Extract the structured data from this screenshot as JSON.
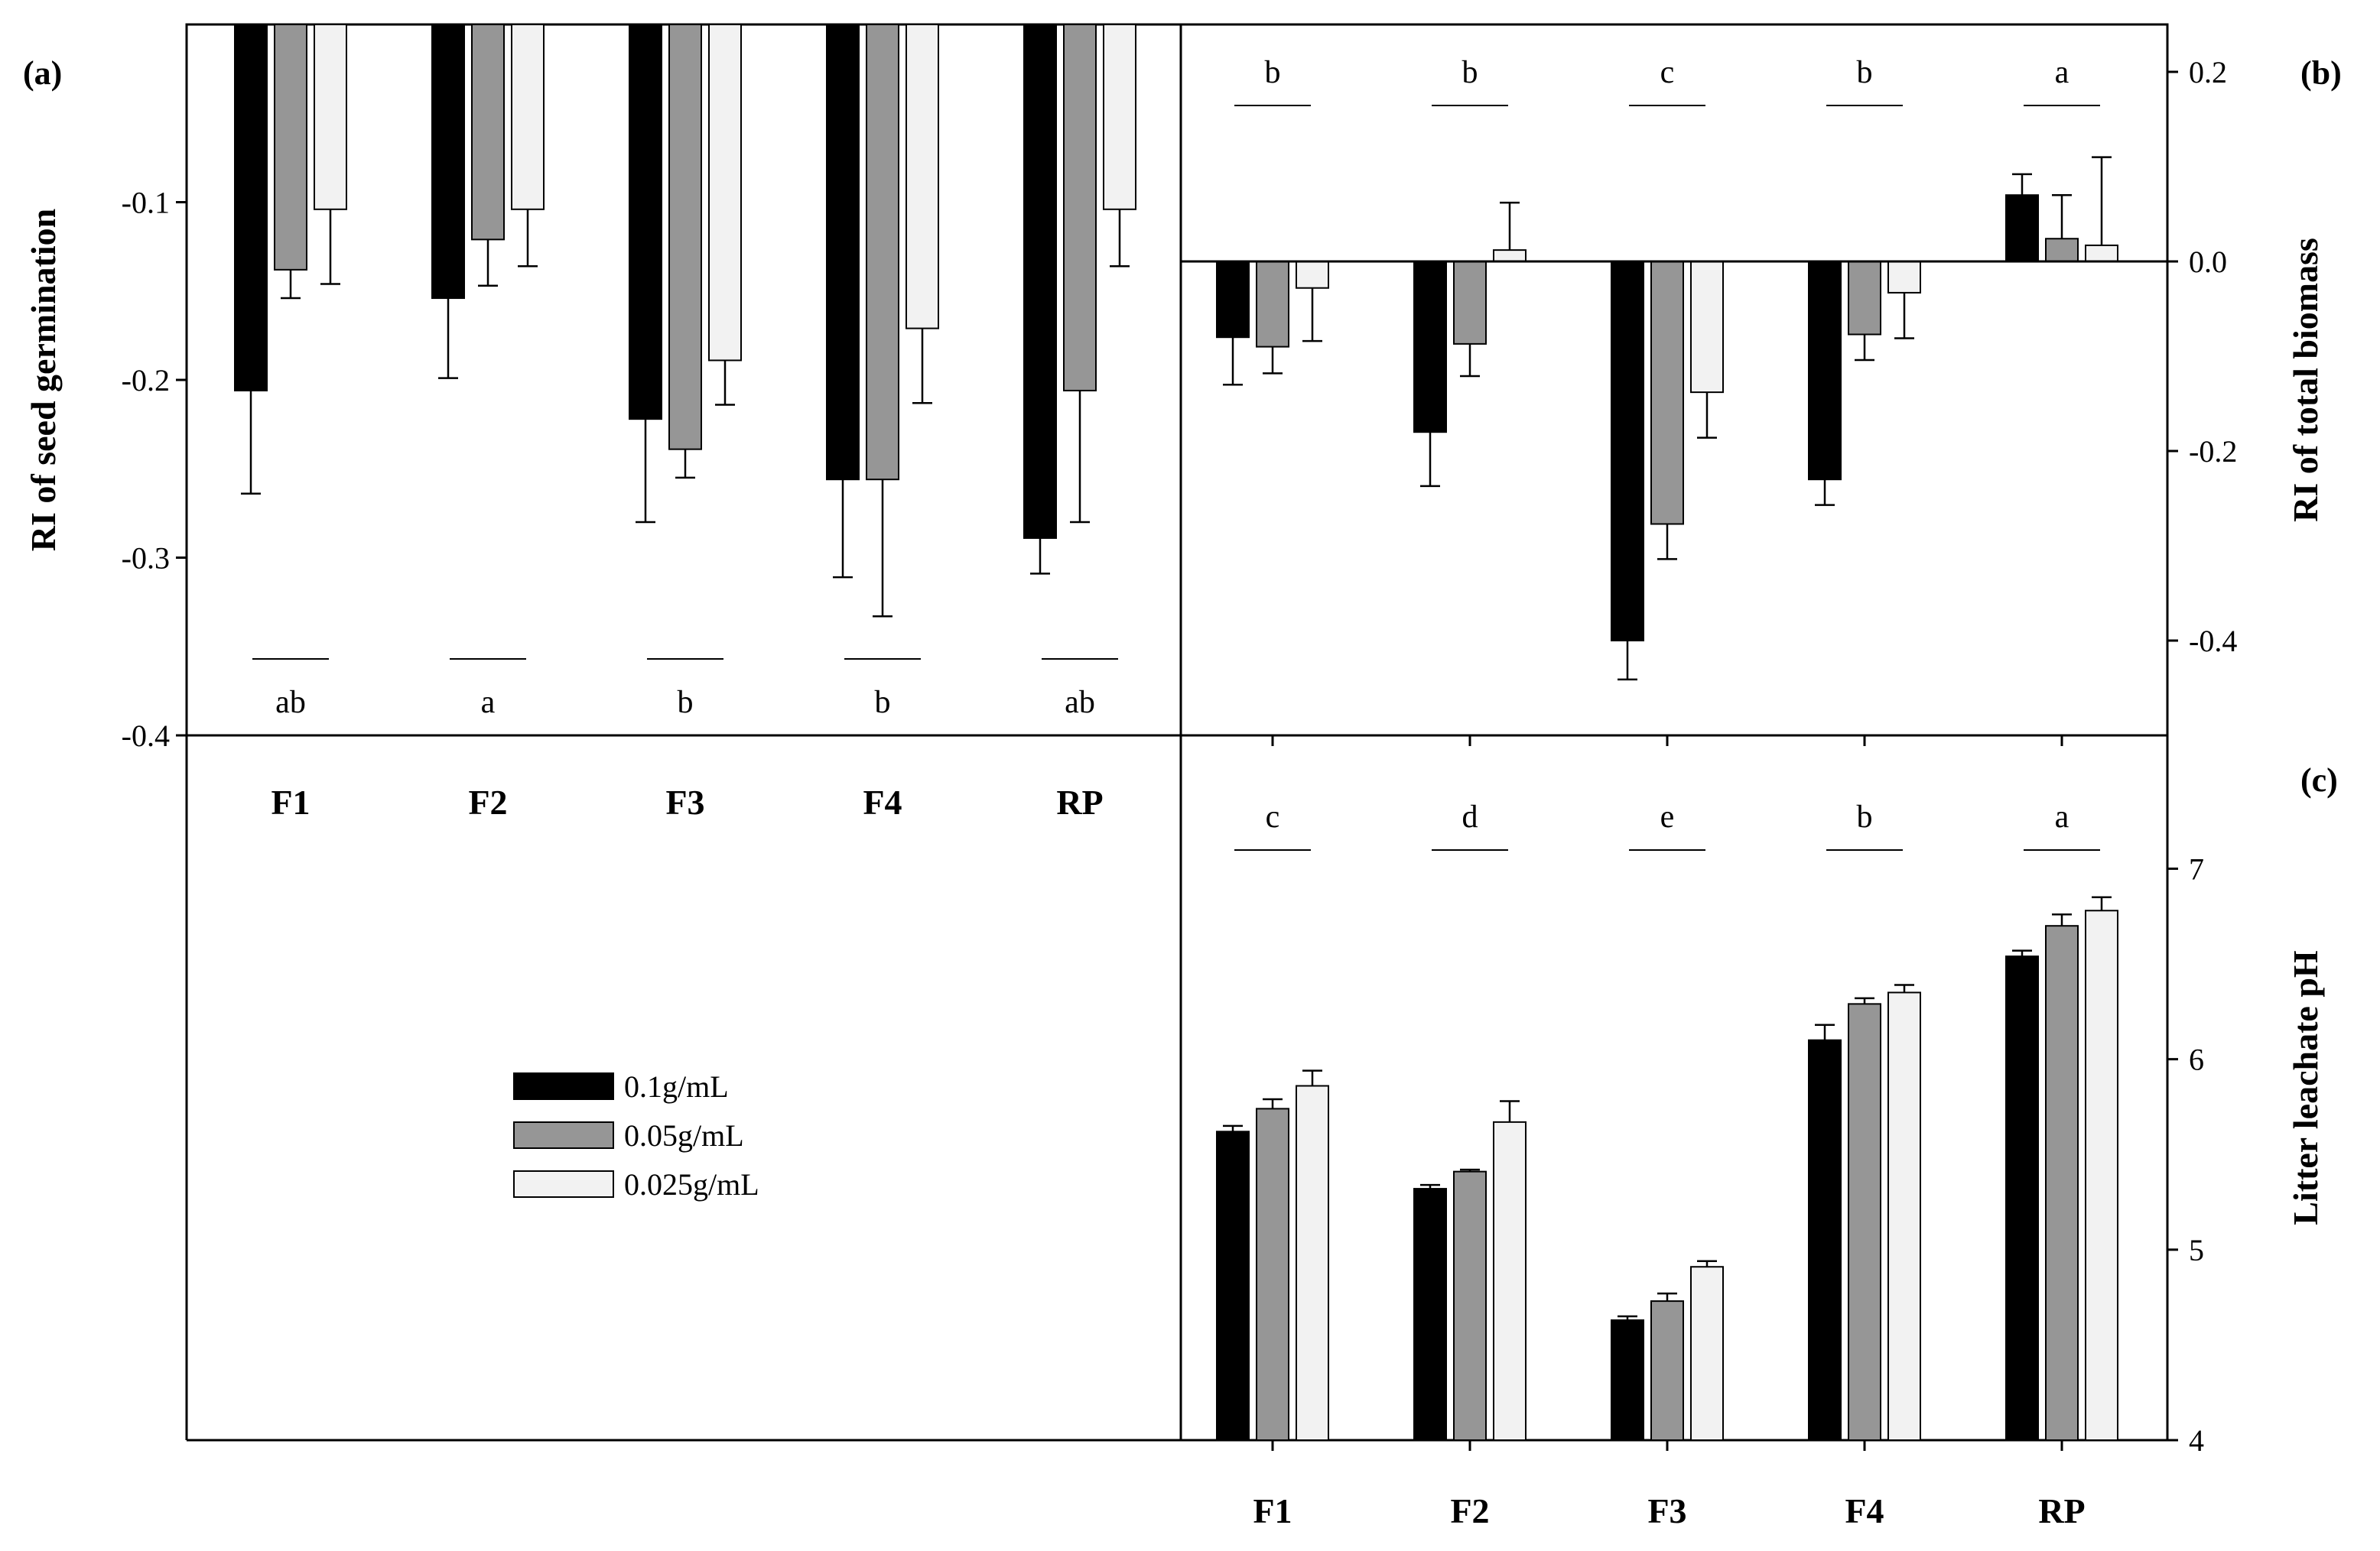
{
  "figure": {
    "series": [
      {
        "name": "0.1g/mL",
        "color": "#000000"
      },
      {
        "name": "0.05g/mL",
        "color": "#969696"
      },
      {
        "name": "0.025g/mL",
        "color": "#f2f2f2"
      }
    ]
  },
  "chart_data": [
    {
      "id": "a",
      "type": "bar",
      "panel_label": "(a)",
      "ylabel": "RI of seed germination",
      "xlabel": "",
      "categories": [
        "F1",
        "F2",
        "F3",
        "F4",
        "RP"
      ],
      "ylim": [
        -0.4,
        0.0
      ],
      "yticks": [
        -0.1,
        -0.2,
        -0.3,
        -0.4
      ],
      "ytick_labels": [
        "-0.1",
        "-0.2",
        "-0.3",
        "-0.4"
      ],
      "series": [
        {
          "name": "0.1g/mL",
          "values": [
            -0.206,
            -0.154,
            -0.222,
            -0.256,
            -0.289
          ],
          "errors": [
            0.058,
            0.045,
            0.058,
            0.055,
            0.02
          ]
        },
        {
          "name": "0.05g/mL",
          "values": [
            -0.138,
            -0.121,
            -0.239,
            -0.256,
            -0.206
          ],
          "errors": [
            0.016,
            0.026,
            0.016,
            0.077,
            0.074
          ]
        },
        {
          "name": "0.025g/mL",
          "values": [
            -0.104,
            -0.104,
            -0.189,
            -0.171,
            -0.104
          ],
          "errors": [
            0.042,
            0.032,
            0.025,
            0.042,
            0.032
          ]
        }
      ],
      "significance": [
        "ab",
        "a",
        "b",
        "b",
        "ab"
      ]
    },
    {
      "id": "b",
      "type": "bar",
      "panel_label": "(b)",
      "ylabel": "RI of total biomass",
      "xlabel": "",
      "categories": [
        "F1",
        "F2",
        "F3",
        "F4",
        "RP"
      ],
      "ylim": [
        -0.5,
        0.25
      ],
      "yticks": [
        0.2,
        0.0,
        -0.2,
        -0.4
      ],
      "ytick_labels": [
        "0.2",
        "0.0",
        "-0.2",
        "-0.4"
      ],
      "series": [
        {
          "name": "0.1g/mL",
          "values": [
            -0.08,
            -0.18,
            -0.4,
            -0.23,
            0.07
          ],
          "errors": [
            0.05,
            0.057,
            0.041,
            0.027,
            0.022
          ]
        },
        {
          "name": "0.05g/mL",
          "values": [
            -0.09,
            -0.087,
            -0.277,
            -0.077,
            0.024
          ],
          "errors": [
            0.028,
            0.034,
            0.037,
            0.027,
            0.046
          ]
        },
        {
          "name": "0.025g/mL",
          "values": [
            -0.028,
            0.012,
            -0.138,
            -0.033,
            0.017
          ],
          "errors": [
            0.056,
            0.05,
            0.048,
            0.048,
            0.093
          ]
        }
      ],
      "significance": [
        "b",
        "b",
        "c",
        "b",
        "a"
      ]
    },
    {
      "id": "c",
      "type": "bar",
      "panel_label": "(c)",
      "ylabel": "Litter leachate pH",
      "xlabel": "",
      "categories": [
        "F1",
        "F2",
        "F3",
        "F4",
        "RP"
      ],
      "ylim": [
        4,
        7.7
      ],
      "yticks": [
        4,
        5,
        6,
        7
      ],
      "ytick_labels": [
        "4",
        "5",
        "6",
        "7"
      ],
      "series": [
        {
          "name": "0.1g/mL",
          "values": [
            5.62,
            5.32,
            4.63,
            6.1,
            6.54
          ],
          "errors": [
            0.03,
            0.02,
            0.02,
            0.08,
            0.03
          ]
        },
        {
          "name": "0.05g/mL",
          "values": [
            5.74,
            5.41,
            4.73,
            6.29,
            6.7
          ],
          "errors": [
            0.05,
            0.01,
            0.04,
            0.03,
            0.06
          ]
        },
        {
          "name": "0.025g/mL",
          "values": [
            5.86,
            5.67,
            4.91,
            6.35,
            6.78
          ],
          "errors": [
            0.08,
            0.11,
            0.03,
            0.04,
            0.07
          ]
        }
      ],
      "significance": [
        "c",
        "d",
        "e",
        "b",
        "a"
      ]
    }
  ]
}
